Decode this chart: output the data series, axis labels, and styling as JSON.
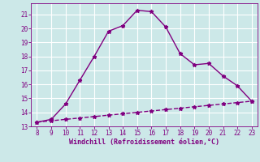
{
  "x_main": [
    8,
    9,
    10,
    11,
    12,
    13,
    14,
    15,
    16,
    17,
    18,
    19,
    20,
    21,
    22,
    23
  ],
  "y_main": [
    13.3,
    13.5,
    14.6,
    16.3,
    18.0,
    19.8,
    20.2,
    21.3,
    21.2,
    20.1,
    18.2,
    17.4,
    17.5,
    16.6,
    15.9,
    14.8
  ],
  "x_line2": [
    8,
    9,
    10,
    11,
    12,
    13,
    14,
    15,
    16,
    17,
    18,
    19,
    20,
    21,
    22,
    23
  ],
  "y_line2": [
    13.3,
    13.4,
    13.5,
    13.6,
    13.7,
    13.8,
    13.9,
    14.0,
    14.1,
    14.2,
    14.3,
    14.4,
    14.5,
    14.6,
    14.7,
    14.8
  ],
  "xlim": [
    7.6,
    23.4
  ],
  "ylim": [
    13.0,
    21.8
  ],
  "xticks": [
    8,
    9,
    10,
    11,
    12,
    13,
    14,
    15,
    16,
    17,
    18,
    19,
    20,
    21,
    22,
    23
  ],
  "yticks": [
    13,
    14,
    15,
    16,
    17,
    18,
    19,
    20,
    21
  ],
  "xlabel": "Windchill (Refroidissement éolien,°C)",
  "line_color": "#800080",
  "bg_color": "#cce8e8",
  "grid_color": "#b0d8d8",
  "label_color": "#800080",
  "marker": "*",
  "markersize": 3.5,
  "linewidth": 1.0,
  "tick_fontsize": 5.5,
  "xlabel_fontsize": 6.0
}
